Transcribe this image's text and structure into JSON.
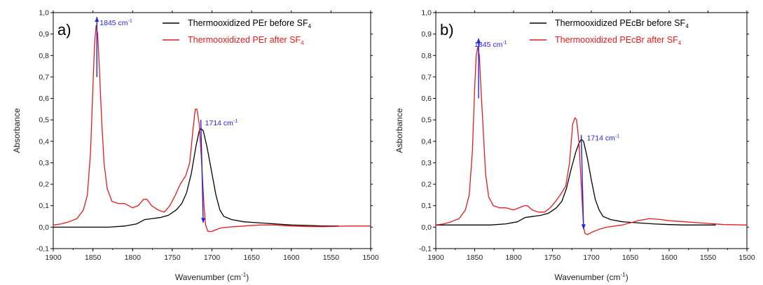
{
  "chart_data": [
    {
      "type": "line",
      "panel_label": "a)",
      "xlabel": "Wavenumber (cm",
      "xlabel_sup": "-1",
      "xlabel_end": ")",
      "ylabel": "Absorbance",
      "xlim": [
        1900,
        1500
      ],
      "ylim": [
        -0.1,
        1.0
      ],
      "x_ticks": [
        1900,
        1850,
        1800,
        1750,
        1700,
        1650,
        1600,
        1550,
        1500
      ],
      "x_tick_labels": [
        "1900",
        "1850",
        "1800",
        "1750",
        "1700",
        "1650",
        "1600",
        "1550",
        "1500"
      ],
      "y_ticks": [
        -0.1,
        0.0,
        0.1,
        0.2,
        0.3,
        0.4,
        0.5,
        0.6,
        0.7,
        0.8,
        0.9,
        1.0
      ],
      "y_tick_labels": [
        "-0,1",
        "0,0",
        "0,1",
        "0,2",
        "0,3",
        "0,4",
        "0,5",
        "0,6",
        "0,7",
        "0,8",
        "0,9",
        "1,0"
      ],
      "legend_position": "top-right",
      "series": [
        {
          "name_main": "Thermooxidized PEr before SF",
          "name_sub": "4",
          "color": "#000000",
          "points": [
            [
              1900,
              0.0
            ],
            [
              1870,
              0.0
            ],
            [
              1850,
              0.0
            ],
            [
              1830,
              0.0
            ],
            [
              1810,
              0.005
            ],
            [
              1795,
              0.015
            ],
            [
              1785,
              0.035
            ],
            [
              1775,
              0.04
            ],
            [
              1765,
              0.045
            ],
            [
              1755,
              0.055
            ],
            [
              1745,
              0.08
            ],
            [
              1738,
              0.11
            ],
            [
              1732,
              0.16
            ],
            [
              1726,
              0.25
            ],
            [
              1720,
              0.38
            ],
            [
              1716,
              0.45
            ],
            [
              1714,
              0.46
            ],
            [
              1711,
              0.45
            ],
            [
              1706,
              0.37
            ],
            [
              1700,
              0.25
            ],
            [
              1695,
              0.15
            ],
            [
              1690,
              0.08
            ],
            [
              1685,
              0.05
            ],
            [
              1675,
              0.035
            ],
            [
              1660,
              0.025
            ],
            [
              1640,
              0.02
            ],
            [
              1620,
              0.015
            ],
            [
              1600,
              0.01
            ],
            [
              1580,
              0.008
            ],
            [
              1560,
              0.005
            ],
            [
              1540,
              0.005
            ]
          ]
        },
        {
          "name_main": "Thermooxidized PEr after SF",
          "name_sub": "4",
          "color": "#e41a1c",
          "points": [
            [
              1900,
              0.01
            ],
            [
              1890,
              0.015
            ],
            [
              1880,
              0.025
            ],
            [
              1870,
              0.04
            ],
            [
              1862,
              0.08
            ],
            [
              1857,
              0.15
            ],
            [
              1853,
              0.35
            ],
            [
              1850,
              0.65
            ],
            [
              1848,
              0.85
            ],
            [
              1846,
              0.94
            ],
            [
              1844,
              0.9
            ],
            [
              1842,
              0.75
            ],
            [
              1839,
              0.5
            ],
            [
              1836,
              0.3
            ],
            [
              1832,
              0.18
            ],
            [
              1826,
              0.12
            ],
            [
              1818,
              0.11
            ],
            [
              1810,
              0.11
            ],
            [
              1800,
              0.09
            ],
            [
              1793,
              0.1
            ],
            [
              1786,
              0.13
            ],
            [
              1782,
              0.13
            ],
            [
              1776,
              0.1
            ],
            [
              1768,
              0.08
            ],
            [
              1760,
              0.07
            ],
            [
              1753,
              0.1
            ],
            [
              1746,
              0.15
            ],
            [
              1740,
              0.2
            ],
            [
              1733,
              0.24
            ],
            [
              1728,
              0.3
            ],
            [
              1724,
              0.45
            ],
            [
              1721,
              0.55
            ],
            [
              1719,
              0.55
            ],
            [
              1716,
              0.48
            ],
            [
              1713,
              0.3
            ],
            [
              1710,
              0.1
            ],
            [
              1708,
              0.01
            ],
            [
              1705,
              -0.02
            ],
            [
              1700,
              -0.02
            ],
            [
              1690,
              -0.005
            ],
            [
              1680,
              0.0
            ],
            [
              1660,
              0.005
            ],
            [
              1640,
              0.01
            ],
            [
              1620,
              0.01
            ],
            [
              1600,
              0.005
            ],
            [
              1580,
              0.003
            ],
            [
              1560,
              0.002
            ],
            [
              1530,
              0.005
            ],
            [
              1500,
              0.005
            ]
          ]
        }
      ],
      "annotations": [
        {
          "label_main": "1845 cm",
          "label_sup": "-1",
          "x": 1845,
          "y_start": 0.7,
          "y_end": 0.98
        },
        {
          "label_main": "1714 cm",
          "label_sup": "-1",
          "x": 1714,
          "y_start": 0.5,
          "y_end": 0.02,
          "x_end": 1711
        }
      ]
    },
    {
      "type": "line",
      "panel_label": "b)",
      "xlabel": "Wavenumber (cm",
      "xlabel_sup": "-1",
      "xlabel_end": ")",
      "ylabel": "Asborbance",
      "xlim": [
        1900,
        1500
      ],
      "ylim": [
        -0.1,
        1.0
      ],
      "x_ticks": [
        1900,
        1850,
        1800,
        1750,
        1700,
        1650,
        1600,
        1550,
        1500
      ],
      "x_tick_labels": [
        "1900",
        "1850",
        "1800",
        "1750",
        "1700",
        "1650",
        "1600",
        "1550",
        "1500"
      ],
      "y_ticks": [
        -0.1,
        0.0,
        0.1,
        0.2,
        0.3,
        0.4,
        0.5,
        0.6,
        0.7,
        0.8,
        0.9,
        1.0
      ],
      "y_tick_labels": [
        "-0,1",
        "0,0",
        "0,1",
        "0,2",
        "0,3",
        "0,4",
        "0,5",
        "0,6",
        "0,7",
        "0,8",
        "0,9",
        "1,0"
      ],
      "legend_position": "top-right",
      "series": [
        {
          "name_main": "Thermooxidized PEcBr before SF",
          "name_sub": "4",
          "color": "#000000",
          "points": [
            [
              1900,
              0.01
            ],
            [
              1870,
              0.01
            ],
            [
              1850,
              0.01
            ],
            [
              1830,
              0.01
            ],
            [
              1810,
              0.015
            ],
            [
              1795,
              0.025
            ],
            [
              1785,
              0.045
            ],
            [
              1775,
              0.05
            ],
            [
              1765,
              0.055
            ],
            [
              1755,
              0.065
            ],
            [
              1745,
              0.09
            ],
            [
              1738,
              0.12
            ],
            [
              1732,
              0.18
            ],
            [
              1726,
              0.27
            ],
            [
              1720,
              0.35
            ],
            [
              1716,
              0.39
            ],
            [
              1713,
              0.41
            ],
            [
              1710,
              0.4
            ],
            [
              1705,
              0.32
            ],
            [
              1700,
              0.22
            ],
            [
              1695,
              0.13
            ],
            [
              1690,
              0.08
            ],
            [
              1685,
              0.05
            ],
            [
              1675,
              0.035
            ],
            [
              1660,
              0.025
            ],
            [
              1640,
              0.02
            ],
            [
              1620,
              0.015
            ],
            [
              1600,
              0.012
            ],
            [
              1580,
              0.01
            ],
            [
              1560,
              0.01
            ],
            [
              1540,
              0.01
            ]
          ]
        },
        {
          "name_main": "Thermooxidized PEcBr after SF",
          "name_sub": "4",
          "color": "#e41a1c",
          "points": [
            [
              1900,
              0.01
            ],
            [
              1890,
              0.015
            ],
            [
              1880,
              0.025
            ],
            [
              1870,
              0.04
            ],
            [
              1862,
              0.08
            ],
            [
              1857,
              0.15
            ],
            [
              1853,
              0.35
            ],
            [
              1850,
              0.65
            ],
            [
              1848,
              0.8
            ],
            [
              1846,
              0.84
            ],
            [
              1844,
              0.8
            ],
            [
              1842,
              0.65
            ],
            [
              1839,
              0.45
            ],
            [
              1836,
              0.25
            ],
            [
              1832,
              0.14
            ],
            [
              1826,
              0.1
            ],
            [
              1818,
              0.09
            ],
            [
              1810,
              0.09
            ],
            [
              1800,
              0.08
            ],
            [
              1793,
              0.09
            ],
            [
              1786,
              0.1
            ],
            [
              1782,
              0.1
            ],
            [
              1776,
              0.08
            ],
            [
              1768,
              0.07
            ],
            [
              1760,
              0.07
            ],
            [
              1753,
              0.09
            ],
            [
              1746,
              0.12
            ],
            [
              1740,
              0.15
            ],
            [
              1733,
              0.19
            ],
            [
              1728,
              0.3
            ],
            [
              1724,
              0.48
            ],
            [
              1721,
              0.51
            ],
            [
              1719,
              0.5
            ],
            [
              1716,
              0.4
            ],
            [
              1713,
              0.2
            ],
            [
              1710,
              0.0
            ],
            [
              1708,
              -0.03
            ],
            [
              1705,
              -0.035
            ],
            [
              1700,
              -0.025
            ],
            [
              1690,
              -0.01
            ],
            [
              1680,
              0.0
            ],
            [
              1660,
              0.01
            ],
            [
              1640,
              0.03
            ],
            [
              1625,
              0.04
            ],
            [
              1610,
              0.035
            ],
            [
              1600,
              0.03
            ],
            [
              1580,
              0.025
            ],
            [
              1560,
              0.02
            ],
            [
              1530,
              0.012
            ],
            [
              1500,
              0.01
            ]
          ]
        }
      ],
      "annotations": [
        {
          "label_main": "1845 cm",
          "label_sup": "-1",
          "x": 1845,
          "y_start": 0.6,
          "y_end": 0.88
        },
        {
          "label_main": "1714 cm",
          "label_sup": "-1",
          "x": 1713,
          "y_start": 0.43,
          "y_end": -0.01,
          "x_end": 1710
        }
      ]
    }
  ]
}
